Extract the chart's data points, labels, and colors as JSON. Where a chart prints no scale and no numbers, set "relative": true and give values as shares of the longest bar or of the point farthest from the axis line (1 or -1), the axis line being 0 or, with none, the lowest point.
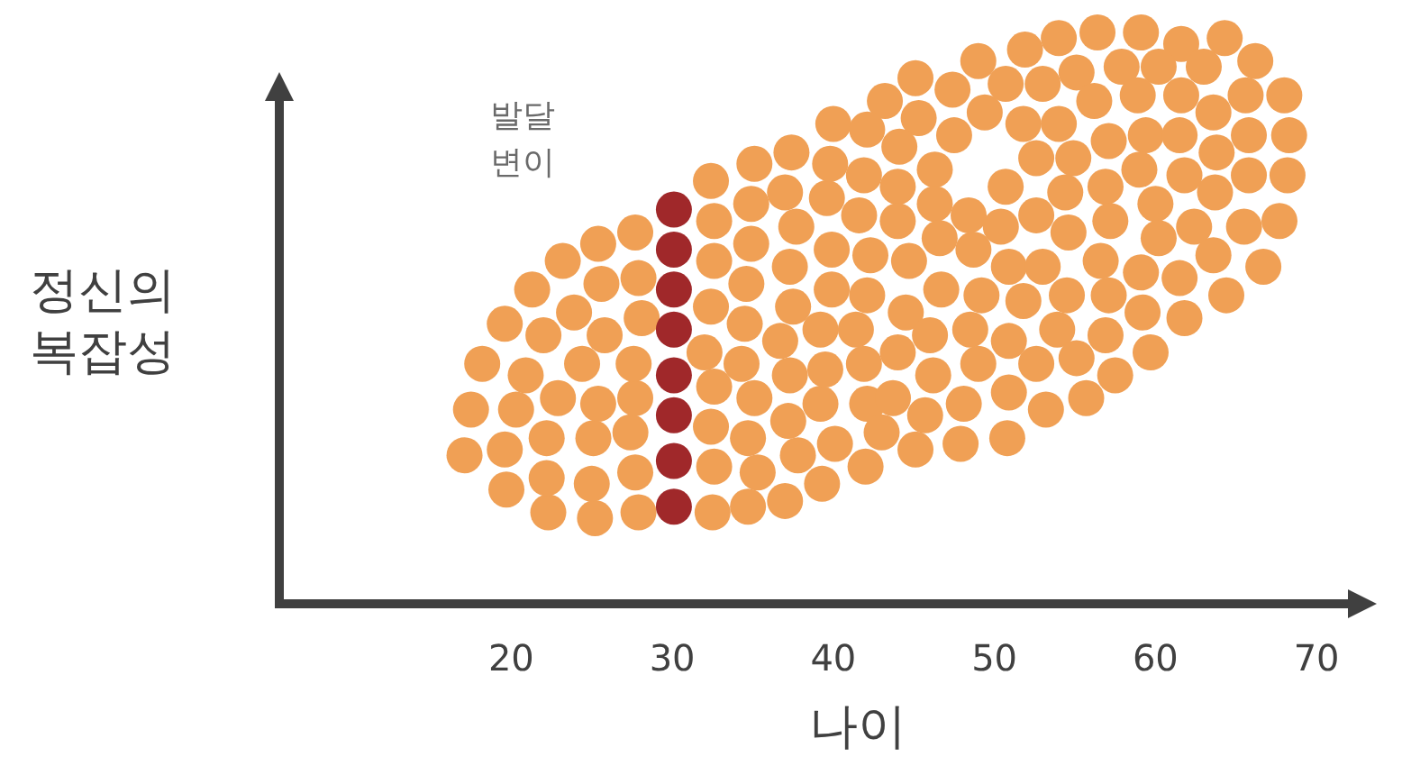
{
  "chart_data": {
    "type": "scatter",
    "relative": true,
    "xlabel": "나이",
    "ylabel": "정신의 복잡성",
    "annotations": [
      "발달 변이"
    ],
    "xlim": [
      5.6,
      72.4
    ],
    "xticks": [
      20,
      30,
      40,
      50,
      60,
      70
    ],
    "marker": "circle",
    "grid": false,
    "tick_labels": "x",
    "series": [
      {
        "color": "#f0a055",
        "x": [
          27.7,
          25.4,
          23.2,
          21.3,
          19.6,
          18.2,
          17.5,
          17.1,
          19.7,
          22.3,
          25.2,
          27.9,
          27.9,
          25.6,
          23.9,
          22.0,
          20.9,
          20.3,
          19.6,
          22.2,
          25.0,
          27.7,
          28.1,
          25.8,
          24.4,
          22.9,
          22.2,
          25.1,
          27.4,
          27.7,
          27.6,
          25.4,
          32.6,
          32.6,
          32.4,
          32.0,
          32.6,
          32.4,
          32.6,
          32.5,
          34.9,
          34.9,
          34.6,
          34.5,
          34.3,
          35.1,
          34.7,
          35.3,
          34.7,
          37.0,
          37.7,
          37.3,
          37.5,
          36.7,
          37.3,
          39.2,
          37.2,
          37.8,
          37.0,
          39.3,
          39.6,
          39.9,
          39.9,
          39.2,
          39.5,
          40.1,
          42.0,
          41.6,
          42.3,
          42.1,
          41.4,
          41.9,
          42.1,
          45.1,
          43.2,
          40.0,
          37.4,
          35.1,
          32.4,
          47.4,
          45.3,
          42.1,
          39.8,
          49.0,
          50.7,
          49.4,
          47.5,
          44.1,
          41.9,
          46.3,
          44.0,
          46.3,
          48.4,
          50.7,
          44.0,
          46.6,
          48.7,
          50.4,
          44.7,
          46.7,
          49.2,
          50.9,
          51.8,
          44.5,
          46.0,
          48.5,
          50.9,
          44.0,
          46.2,
          49.0,
          52.6,
          43.7,
          45.7,
          48.1,
          50.8,
          43.0,
          45.1,
          47.9,
          54.0,
          56.4,
          59.1,
          61.6,
          64.3,
          66.2,
          68.0,
          68.3,
          68.2,
          67.7,
          66.7,
          51.9,
          55.1,
          57.9,
          60.2,
          63.0,
          65.6,
          65.8,
          65.8,
          65.5,
          64.4,
          53.0,
          56.2,
          58.9,
          61.6,
          63.6,
          63.8,
          63.7,
          63.6,
          61.8,
          51.8,
          54.0,
          57.1,
          59.4,
          61.5,
          61.8,
          62.4,
          61.5,
          59.7,
          52.6,
          54.9,
          59.0,
          60.0,
          60.2,
          59.1,
          59.2,
          57.5,
          54.4,
          56.9,
          57.2,
          56.6,
          57.1,
          56.9,
          55.7,
          54.6,
          53.0,
          54.5,
          53.9,
          55.1,
          53.2,
          50.9,
          52.6
        ],
        "values": [
          0.65,
          0.63,
          0.6,
          0.55,
          0.49,
          0.42,
          0.34,
          0.26,
          0.2,
          0.16,
          0.15,
          0.16,
          0.57,
          0.56,
          0.51,
          0.47,
          0.4,
          0.34,
          0.27,
          0.22,
          0.21,
          0.23,
          0.5,
          0.47,
          0.42,
          0.36,
          0.29,
          0.29,
          0.3,
          0.36,
          0.42,
          0.35,
          0.67,
          0.6,
          0.52,
          0.44,
          0.38,
          0.31,
          0.24,
          0.16,
          0.7,
          0.63,
          0.56,
          0.49,
          0.42,
          0.36,
          0.29,
          0.23,
          0.17,
          0.72,
          0.66,
          0.59,
          0.52,
          0.46,
          0.4,
          0.35,
          0.32,
          0.26,
          0.18,
          0.21,
          0.71,
          0.62,
          0.55,
          0.48,
          0.41,
          0.28,
          0.24,
          0.68,
          0.61,
          0.54,
          0.48,
          0.42,
          0.35,
          0.92,
          0.88,
          0.84,
          0.79,
          0.77,
          0.74,
          0.9,
          0.85,
          0.83,
          0.77,
          0.95,
          0.91,
          0.86,
          0.82,
          0.8,
          0.75,
          0.76,
          0.73,
          0.7,
          0.68,
          0.73,
          0.67,
          0.64,
          0.62,
          0.66,
          0.6,
          0.55,
          0.54,
          0.59,
          0.53,
          0.51,
          0.47,
          0.48,
          0.46,
          0.44,
          0.4,
          0.42,
          0.42,
          0.36,
          0.33,
          0.35,
          0.29,
          0.3,
          0.27,
          0.28,
          0.99,
          1.0,
          1.0,
          0.98,
          0.99,
          0.95,
          0.89,
          0.82,
          0.75,
          0.67,
          0.59,
          0.97,
          0.93,
          0.94,
          0.94,
          0.94,
          0.89,
          0.82,
          0.75,
          0.66,
          0.54,
          0.91,
          0.88,
          0.89,
          0.89,
          0.86,
          0.79,
          0.72,
          0.61,
          0.5,
          0.84,
          0.84,
          0.81,
          0.82,
          0.82,
          0.75,
          0.66,
          0.57,
          0.44,
          0.78,
          0.78,
          0.76,
          0.7,
          0.64,
          0.58,
          0.51,
          0.4,
          0.72,
          0.73,
          0.67,
          0.6,
          0.54,
          0.47,
          0.36,
          0.65,
          0.59,
          0.54,
          0.48,
          0.43,
          0.34,
          0.37,
          0.68
        ]
      },
      {
        "color": "#a0282a",
        "x": [
          30.1,
          30.1,
          30.1,
          30.1,
          30.1,
          30.1,
          30.1,
          30.1
        ],
        "values": [
          0.69,
          0.62,
          0.55,
          0.48,
          0.4,
          0.33,
          0.25,
          0.17
        ]
      }
    ]
  }
}
